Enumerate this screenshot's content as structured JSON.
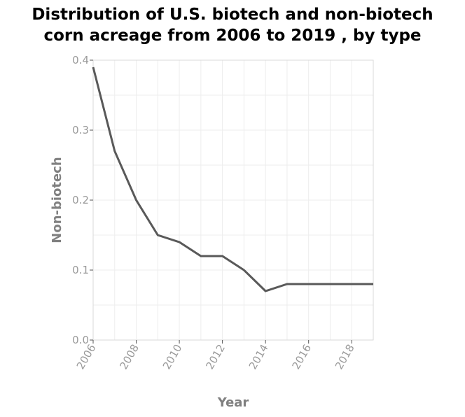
{
  "chart_data": {
    "type": "line",
    "title_line1": "Distribution of U.S. biotech and non-biotech",
    "title_line2": "corn acreage from 2006 to 2019 , by type",
    "xlabel": "Year",
    "ylabel": "Non-biotech",
    "xlim": [
      2006,
      2019
    ],
    "ylim": [
      0,
      0.4
    ],
    "x_ticks": [
      2006,
      2008,
      2010,
      2012,
      2014,
      2016,
      2018
    ],
    "y_ticks": [
      "0.0",
      "0.1",
      "0.2",
      "0.3",
      "0.4"
    ],
    "grid": true,
    "line_color": "#595959",
    "series": [
      {
        "x": [
          2006,
          2007,
          2008,
          2009,
          2010,
          2011,
          2012,
          2013,
          2014,
          2015,
          2016,
          2017,
          2018,
          2019
        ],
        "values": [
          0.39,
          0.27,
          0.2,
          0.15,
          0.14,
          0.12,
          0.12,
          0.1,
          0.07,
          0.08,
          0.08,
          0.08,
          0.08,
          0.08
        ]
      }
    ]
  }
}
